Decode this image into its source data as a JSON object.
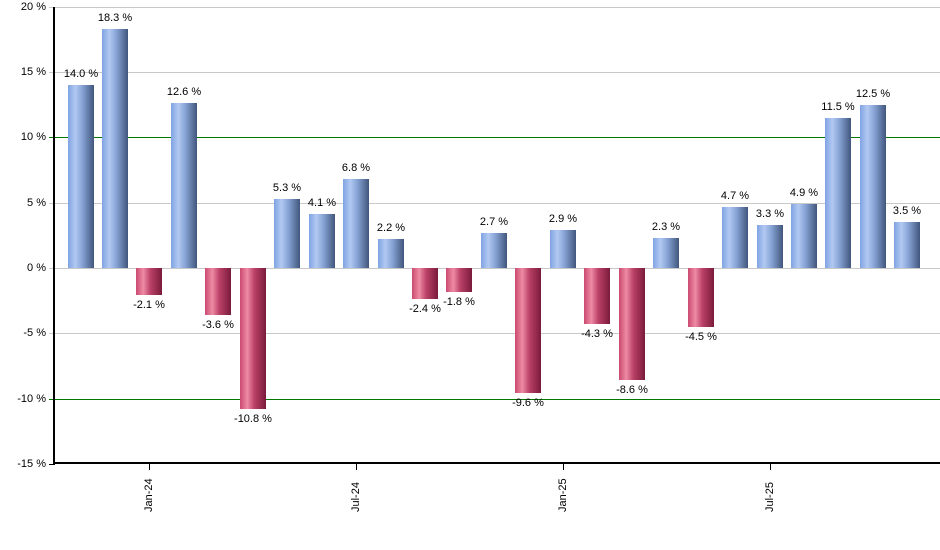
{
  "chart_data": {
    "type": "bar",
    "title": "",
    "description": "Monthly percent returns bar chart, positive months blue, negative months red",
    "values": [
      14.0,
      18.3,
      -2.1,
      12.6,
      -3.6,
      -10.8,
      5.3,
      4.1,
      6.8,
      2.2,
      -2.4,
      -1.8,
      2.7,
      -9.6,
      2.9,
      -4.3,
      -8.6,
      2.3,
      -4.5,
      4.7,
      3.3,
      4.9,
      11.5,
      12.5,
      3.5
    ],
    "data_labels": [
      "14.0 %",
      "18.3 %",
      "-2.1 %",
      "12.6 %",
      "-3.6 %",
      "-10.8 %",
      "5.3 %",
      "4.1 %",
      "6.8 %",
      "2.2 %",
      "-2.4 %",
      "-1.8 %",
      "2.7 %",
      "-9.6 %",
      "2.9 %",
      "-4.3 %",
      "-8.6 %",
      "2.3 %",
      "-4.5 %",
      "4.7 %",
      "3.3 %",
      "4.9 %",
      "11.5 %",
      "12.5 %",
      "3.5 %"
    ],
    "xlabel": "",
    "ylabel": "",
    "grid": true,
    "legend": "none",
    "y_axis": {
      "ylim": [
        -15,
        20
      ],
      "tick_step": 5,
      "tick_values": [
        20,
        15,
        10,
        5,
        0,
        -5,
        -10,
        -15
      ],
      "tick_labels": [
        "20 %",
        "15 %",
        "10 %",
        "5 %",
        "0 %",
        "-5 %",
        "-10 %",
        "-15 %"
      ],
      "emphasis_lines": [
        10,
        -10
      ]
    },
    "x_axis": {
      "tick_labels": [
        "Jan-24",
        "Jul-24",
        "Jan-25",
        "Jul-25"
      ],
      "tick_bar_indices": [
        2,
        8,
        14,
        20
      ],
      "label_rotation_deg": -90
    },
    "colors": {
      "positive": {
        "edge": "#7fa3e2",
        "light": "#b2c9f2",
        "mid": "#87a4d6",
        "dark": "#41567c"
      },
      "negative": {
        "edge": "#c94a70",
        "light": "#ee8ba4",
        "mid": "#bb4168",
        "dark": "#7a1b3c"
      },
      "gridline": "#c9c9c9",
      "emphasis_line": "#007800",
      "axis": "#000000",
      "label_text": "#000000",
      "background": "#ffffff"
    }
  }
}
